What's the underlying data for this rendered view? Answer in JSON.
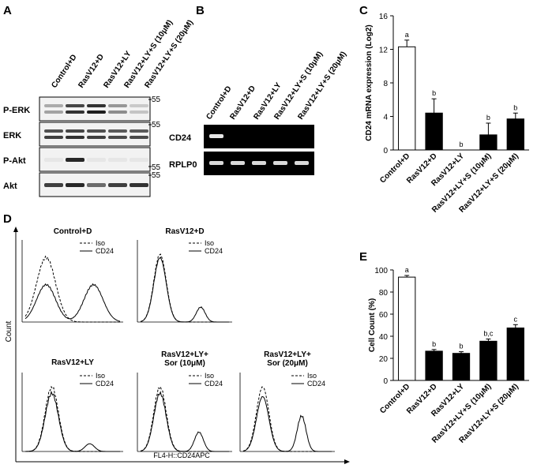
{
  "panels": {
    "A": {
      "letter": "A",
      "lanes": [
        "Control+D",
        "RasV12+D",
        "RasV12+LY",
        "RasV12+LY+S (10μM)",
        "RasV12+LY+S (20μM)"
      ],
      "rows": [
        {
          "label": "P-ERK",
          "marker": "55",
          "intensity": [
            0.35,
            0.85,
            0.95,
            0.45,
            0.2
          ]
        },
        {
          "label": "ERK",
          "marker": "55",
          "intensity": [
            0.8,
            0.85,
            0.8,
            0.75,
            0.75
          ]
        },
        {
          "label": "P-Akt",
          "marker": "55",
          "intensity": [
            0.05,
            0.9,
            0.05,
            0.05,
            0.05
          ]
        },
        {
          "label": "Akt",
          "marker": "55",
          "intensity": [
            0.8,
            0.9,
            0.6,
            0.8,
            0.85
          ]
        }
      ]
    },
    "B": {
      "letter": "B",
      "lanes": [
        "Control+D",
        "RasV12+D",
        "RasV12+LY",
        "RasV12+LY+S (10μM)",
        "RasV12+LY+S (20μM)"
      ],
      "rows": [
        {
          "label": "CD24",
          "intensity": [
            0.9,
            0,
            0,
            0,
            0
          ]
        },
        {
          "label": "RPLP0",
          "intensity": [
            0.85,
            0.85,
            0.85,
            0.85,
            0.85
          ]
        }
      ]
    },
    "C": {
      "letter": "C"
    },
    "D": {
      "letter": "D",
      "yaxis": "Count",
      "xaxis": "FL4-H::CD24APC",
      "legend": [
        "Iso",
        "CD24"
      ],
      "plots": [
        {
          "title": "Control+D"
        },
        {
          "title": "RasV12+D"
        },
        {
          "title": "RasV12+LY"
        },
        {
          "title_lines": [
            "RasV12+LY+",
            "Sor (10μM)"
          ]
        },
        {
          "title_lines": [
            "RasV12+LY+",
            "Sor (20μM)"
          ]
        }
      ]
    },
    "E": {
      "letter": "E"
    }
  },
  "chart_data": [
    {
      "type": "bar",
      "panel": "C",
      "categories": [
        "Control+D",
        "RasV12+D",
        "RasV12+LY",
        "RasV12+LY+S (10μM)",
        "RasV12+LY+S (20μM)"
      ],
      "values": [
        12.3,
        4.4,
        0.0,
        1.8,
        3.7
      ],
      "errors": [
        0.8,
        1.7,
        0.0,
        1.4,
        0.7
      ],
      "letters": [
        "a",
        "b",
        "b",
        "b",
        "b"
      ],
      "colors": [
        "#ffffff",
        "#000000",
        "#000000",
        "#000000",
        "#000000"
      ],
      "ylabel": "CD24 mRNA expression (Log2)",
      "ylim": [
        0,
        16
      ],
      "yticks": [
        0,
        4,
        8,
        12,
        16
      ]
    },
    {
      "type": "bar",
      "panel": "E",
      "categories": [
        "Control+D",
        "RasV12+D",
        "RasV12+LY",
        "RasV12+LY+S (10μM)",
        "RasV12+LY+S (20μM)"
      ],
      "values": [
        93.5,
        26.5,
        24.5,
        35.5,
        47.5
      ],
      "errors": [
        1.5,
        1.5,
        1.5,
        2.0,
        3.0
      ],
      "letters": [
        "a",
        "b",
        "b",
        "b,c",
        "c"
      ],
      "colors": [
        "#ffffff",
        "#000000",
        "#000000",
        "#000000",
        "#000000"
      ],
      "ylabel": "Cell Count (%)",
      "ylim": [
        0,
        100
      ],
      "yticks": [
        0,
        20,
        40,
        60,
        80,
        100
      ]
    }
  ]
}
